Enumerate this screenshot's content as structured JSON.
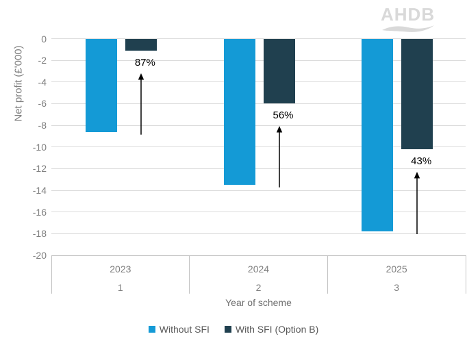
{
  "logo": {
    "text": "AHDB"
  },
  "chart_data": {
    "type": "bar",
    "title": "",
    "ylabel": "Net profit (£'000)",
    "xlabel": "Year of scheme",
    "ylim": [
      -20,
      0
    ],
    "yticks": [
      0,
      -2,
      -4,
      -6,
      -8,
      -10,
      -12,
      -14,
      -16,
      -18,
      -20
    ],
    "grid": true,
    "legend_position": "bottom",
    "categories": [
      "2023",
      "2024",
      "2025"
    ],
    "category_numbers": [
      "1",
      "2",
      "3"
    ],
    "series": [
      {
        "name": "Without SFI",
        "color": "#149AD6",
        "values": [
          -8.6,
          -13.5,
          -17.8
        ]
      },
      {
        "name": "With SFI (Option B)",
        "color": "#20404F",
        "values": [
          -1.1,
          -6.0,
          -10.2
        ]
      }
    ],
    "annotations": [
      {
        "category": "2023",
        "label": "87%"
      },
      {
        "category": "2024",
        "label": "56%"
      },
      {
        "category": "2025",
        "label": "43%"
      }
    ]
  },
  "colors": {
    "grid": "#DBDBDB",
    "axis": "#C2C2C2",
    "tick_text": "#7F7F7F",
    "axis_title_text": "#6E6E6E",
    "legend_text": "#595959",
    "annotation": "#000000",
    "logo": "#D9D9D9",
    "background": "#FFFFFF"
  }
}
